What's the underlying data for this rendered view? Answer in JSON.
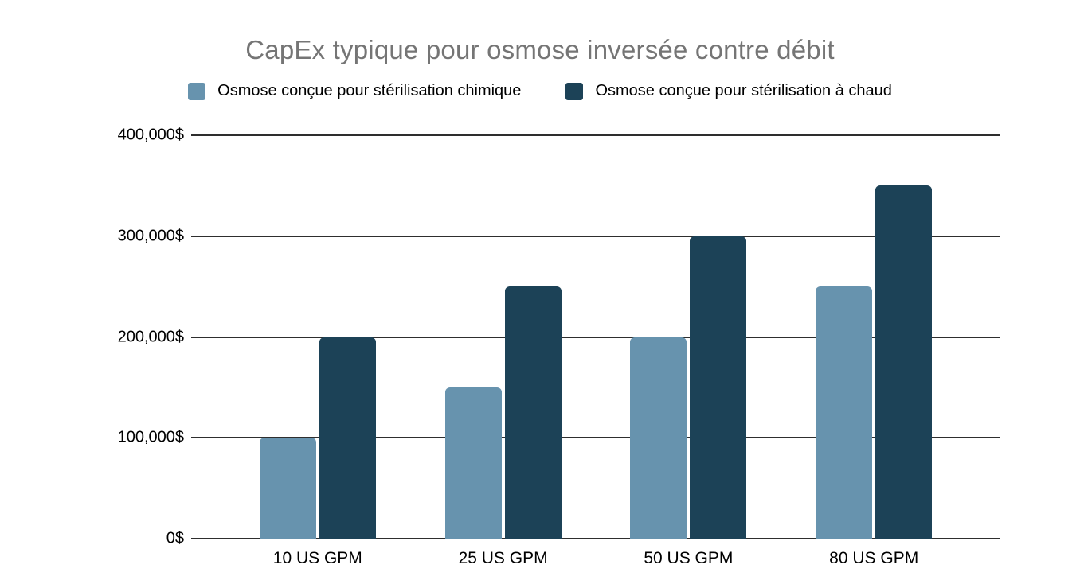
{
  "title": "CapEx typique pour osmose inversée contre débit",
  "colors": {
    "title_gray": "#757575",
    "gridline": "#2e2e2e",
    "text": "#000000",
    "series_light": "#6793ae",
    "series_dark": "#1c4257",
    "background": "#ffffff"
  },
  "chart_data": {
    "type": "bar",
    "title": "CapEx typique pour osmose inversée contre débit",
    "categories": [
      "10 US GPM",
      "25 US GPM",
      "50 US GPM",
      "80 US GPM"
    ],
    "series": [
      {
        "name": "Osmose conçue pour stérilisation chimique",
        "color": "#6793ae",
        "values": [
          100000,
          150000,
          200000,
          250000
        ]
      },
      {
        "name": "Osmose conçue pour stérilisation à chaud",
        "color": "#1c4257",
        "values": [
          200000,
          250000,
          300000,
          350000
        ]
      }
    ],
    "xlabel": "",
    "ylabel": "",
    "ylim": [
      0,
      400000
    ],
    "yticks": [
      {
        "value": 0,
        "label": "0$"
      },
      {
        "value": 100000,
        "label": "100,000$"
      },
      {
        "value": 200000,
        "label": "200,000$"
      },
      {
        "value": 300000,
        "label": "300,000$"
      },
      {
        "value": 400000,
        "label": "400,000$"
      }
    ],
    "grid": true,
    "legend_position": "top"
  }
}
